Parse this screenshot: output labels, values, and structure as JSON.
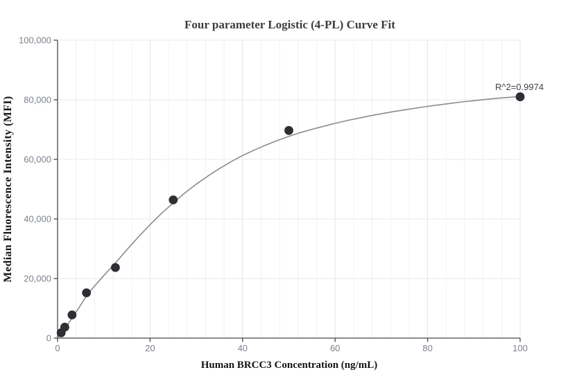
{
  "chart_data": {
    "type": "scatter",
    "title": "Four parameter Logistic (4-PL) Curve Fit",
    "xlabel": "Human BRCC3 Concentration (ng/mL)",
    "ylabel": "Median Fluorescence Intensity (MFI)",
    "annotation": "R^2=0.9974",
    "xlim": [
      0,
      100
    ],
    "ylim": [
      0,
      100000
    ],
    "grid": {
      "x_minor_step": 4,
      "x_major_step": 20,
      "y_major_step": 20000,
      "minor_vertical_on": true,
      "horizontal_minor_on": false
    },
    "x_ticks": [
      {
        "v": 0,
        "label": "0"
      },
      {
        "v": 20,
        "label": "20"
      },
      {
        "v": 40,
        "label": "40"
      },
      {
        "v": 60,
        "label": "60"
      },
      {
        "v": 80,
        "label": "80"
      },
      {
        "v": 100,
        "label": "100"
      }
    ],
    "y_ticks": [
      {
        "v": 0,
        "label": "0"
      },
      {
        "v": 20000,
        "label": "20,000"
      },
      {
        "v": 40000,
        "label": "40,000"
      },
      {
        "v": 60000,
        "label": "60,000"
      },
      {
        "v": 80000,
        "label": "80,000"
      },
      {
        "v": 100000,
        "label": "100,000"
      }
    ],
    "series": [
      {
        "name": "standard-curve-samples",
        "points": [
          [
            0.78,
            1800
          ],
          [
            1.56,
            3700
          ],
          [
            3.13,
            7800
          ],
          [
            6.25,
            15200
          ],
          [
            12.5,
            23700
          ],
          [
            25,
            46400
          ],
          [
            50,
            69700
          ],
          [
            100,
            81000
          ]
        ]
      }
    ],
    "fit_curve": [
      [
        0.2,
        500
      ],
      [
        0.78,
        1600
      ],
      [
        1.56,
        3200
      ],
      [
        2.2,
        4600
      ],
      [
        3.13,
        6700
      ],
      [
        4,
        8800
      ],
      [
        5,
        11100
      ],
      [
        6.25,
        14200
      ],
      [
        8,
        17500
      ],
      [
        10,
        21000
      ],
      [
        12.5,
        25200
      ],
      [
        15,
        29700
      ],
      [
        17.5,
        34000
      ],
      [
        20,
        38100
      ],
      [
        22.5,
        41900
      ],
      [
        25,
        45400
      ],
      [
        27.5,
        48700
      ],
      [
        30,
        51700
      ],
      [
        32.5,
        54400
      ],
      [
        35,
        56900
      ],
      [
        37.5,
        59200
      ],
      [
        40,
        61300
      ],
      [
        42.5,
        63100
      ],
      [
        45,
        64800
      ],
      [
        47.5,
        66300
      ],
      [
        50,
        67700
      ],
      [
        52.5,
        69000
      ],
      [
        55,
        70100
      ],
      [
        57.5,
        71100
      ],
      [
        60,
        72100
      ],
      [
        62.5,
        73000
      ],
      [
        65,
        73800
      ],
      [
        67.5,
        74600
      ],
      [
        70,
        75300
      ],
      [
        72.5,
        76000
      ],
      [
        75,
        76600
      ],
      [
        77.5,
        77200
      ],
      [
        80,
        77800
      ],
      [
        82.5,
        78300
      ],
      [
        85,
        78800
      ],
      [
        87.5,
        79300
      ],
      [
        90,
        79700
      ],
      [
        92.5,
        80100
      ],
      [
        95,
        80500
      ],
      [
        97.5,
        80800
      ],
      [
        100,
        81100
      ]
    ],
    "colors": {
      "background": "#ffffff",
      "title": "#3d3d3d",
      "axis_title": "#141414",
      "tick_label": "#7a828d",
      "axis_line": "#45484d",
      "grid_minor": "#eff2f8",
      "grid_major_vertical": "#dee4f0",
      "grid_major_horizontal": "#e4e8f2",
      "curve": "#8b8b8b",
      "point": "#2d2f32",
      "annotation": "#3f444b"
    },
    "legend": "none"
  }
}
